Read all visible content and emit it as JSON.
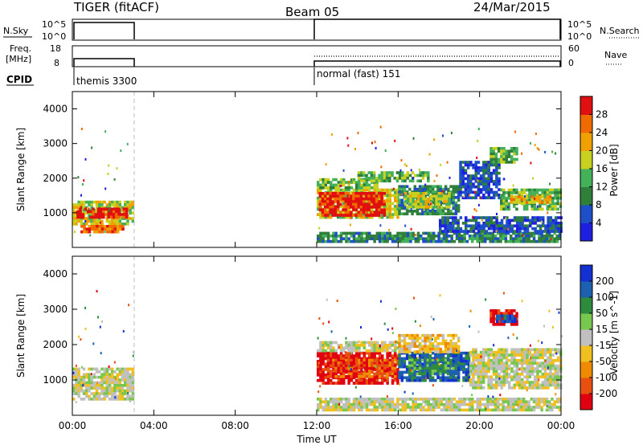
{
  "header": {
    "radar": "TIGER (fitACF)",
    "beam": "Beam 05",
    "date": "24/Mar/2015"
  },
  "params": {
    "nsky_label": "N.Sky",
    "nsearch_label": "N.Search",
    "freq_label_1": "Freq.",
    "freq_label_2": "[MHz]",
    "nave_label": "Nave",
    "cpid_label": "CPID",
    "nsky_ticks": [
      "10^5",
      "10^0"
    ],
    "nsearch_ticks": [
      "10^5",
      "10^0"
    ],
    "freq_ticks": [
      "18",
      "8"
    ],
    "nave_ticks": [
      "60",
      "0"
    ],
    "cpid_segments": [
      {
        "start_h": 0,
        "end_h": 3,
        "label": "themis 3300"
      },
      {
        "start_h": 12,
        "end_h": 24,
        "label": "normal (fast) 151"
      }
    ]
  },
  "colors": {
    "power": [
      "#1f1fe0",
      "#1e4fc8",
      "#2f7f3a",
      "#44b05a",
      "#c8d020",
      "#f0a000",
      "#f06a00",
      "#e01010"
    ],
    "velocity": [
      "#1530d0",
      "#1e60b0",
      "#2e8a3c",
      "#78c850",
      "#c0c0c0",
      "#f0c020",
      "#f08a00",
      "#e85010",
      "#e00010"
    ]
  },
  "chart_data": [
    {
      "type": "heatmap",
      "quantity": "power",
      "ylabel": "Slant Range [km]",
      "ylim": [
        0,
        4500
      ],
      "yticks": [
        "1000",
        "2000",
        "3000",
        "4000"
      ],
      "xlim_hours": [
        0,
        24
      ],
      "colorbar_label": "Power [dB]",
      "colorbar_ticks": [
        "4",
        "8",
        "12",
        "16",
        "20",
        "24",
        "28"
      ],
      "regions": [
        {
          "t0": 0.0,
          "t1": 3.0,
          "r0": 650,
          "r1": 1350,
          "level": 4
        },
        {
          "t0": 0.2,
          "t1": 2.6,
          "r0": 850,
          "r1": 1150,
          "level": 7
        },
        {
          "t0": 0.4,
          "t1": 2.5,
          "r0": 450,
          "r1": 650,
          "level": 6
        },
        {
          "t0": 12.0,
          "t1": 16.0,
          "r0": 850,
          "r1": 1700,
          "level": 4
        },
        {
          "t0": 12.1,
          "t1": 15.3,
          "r0": 950,
          "r1": 1600,
          "level": 7
        },
        {
          "t0": 12.0,
          "t1": 15.0,
          "r0": 1700,
          "r1": 2000,
          "level": 3
        },
        {
          "t0": 14.0,
          "t1": 17.5,
          "r0": 1900,
          "r1": 2200,
          "level": 3
        },
        {
          "t0": 16.0,
          "t1": 19.0,
          "r0": 1000,
          "r1": 1800,
          "level": 2
        },
        {
          "t0": 16.3,
          "t1": 18.5,
          "r0": 1200,
          "r1": 1600,
          "level": 4
        },
        {
          "t0": 19.0,
          "t1": 21.0,
          "r0": 1400,
          "r1": 2500,
          "level": 1
        },
        {
          "t0": 21.0,
          "t1": 24.0,
          "r0": 1100,
          "r1": 1700,
          "level": 3
        },
        {
          "t0": 21.5,
          "t1": 23.5,
          "r0": 1300,
          "r1": 1500,
          "level": 5
        },
        {
          "t0": 20.5,
          "t1": 21.8,
          "r0": 2500,
          "r1": 2900,
          "level": 3
        },
        {
          "t0": 12.0,
          "t1": 24.0,
          "r0": 150,
          "r1": 450,
          "level": 2
        },
        {
          "t0": 18.0,
          "t1": 24.0,
          "r0": 450,
          "r1": 900,
          "level": 1
        }
      ]
    },
    {
      "type": "heatmap",
      "quantity": "velocity",
      "xlabel": "Time UT",
      "ylabel": "Slant Range [km]",
      "ylim": [
        0,
        4500
      ],
      "yticks": [
        "1000",
        "2000",
        "3000",
        "4000"
      ],
      "xlim_hours": [
        0,
        24
      ],
      "xticks": [
        "00:00",
        "04:00",
        "08:00",
        "12:00",
        "16:00",
        "20:00",
        "00:00"
      ],
      "colorbar_label": "Velocity [m s^-1]",
      "colorbar_ticks": [
        "200",
        "100",
        "50",
        "15",
        "-15",
        "-50",
        "-100",
        "-200"
      ],
      "regions": [
        {
          "t0": 0.0,
          "t1": 3.0,
          "r0": 450,
          "r1": 1350,
          "level": 4
        },
        {
          "t0": 12.0,
          "t1": 16.0,
          "r0": 950,
          "r1": 1800,
          "level": 0
        },
        {
          "t0": 12.5,
          "t1": 15.8,
          "r0": 1100,
          "r1": 1600,
          "level": 1
        },
        {
          "t0": 16.0,
          "t1": 19.5,
          "r0": 1000,
          "r1": 1800,
          "level": 7
        },
        {
          "t0": 16.5,
          "t1": 19.0,
          "r0": 1200,
          "r1": 1600,
          "level": 6
        },
        {
          "t0": 12.0,
          "t1": 16.0,
          "r0": 1800,
          "r1": 2100,
          "level": 4
        },
        {
          "t0": 16.0,
          "t1": 19.0,
          "r0": 1800,
          "r1": 2300,
          "level": 3
        },
        {
          "t0": 19.5,
          "t1": 24.0,
          "r0": 800,
          "r1": 1900,
          "level": 4
        },
        {
          "t0": 20.5,
          "t1": 21.8,
          "r0": 2600,
          "r1": 3000,
          "level": 0
        },
        {
          "t0": 20.8,
          "t1": 21.8,
          "r0": 2650,
          "r1": 2850,
          "level": 7
        },
        {
          "t0": 12.0,
          "t1": 24.0,
          "r0": 150,
          "r1": 500,
          "level": 4
        }
      ]
    }
  ]
}
